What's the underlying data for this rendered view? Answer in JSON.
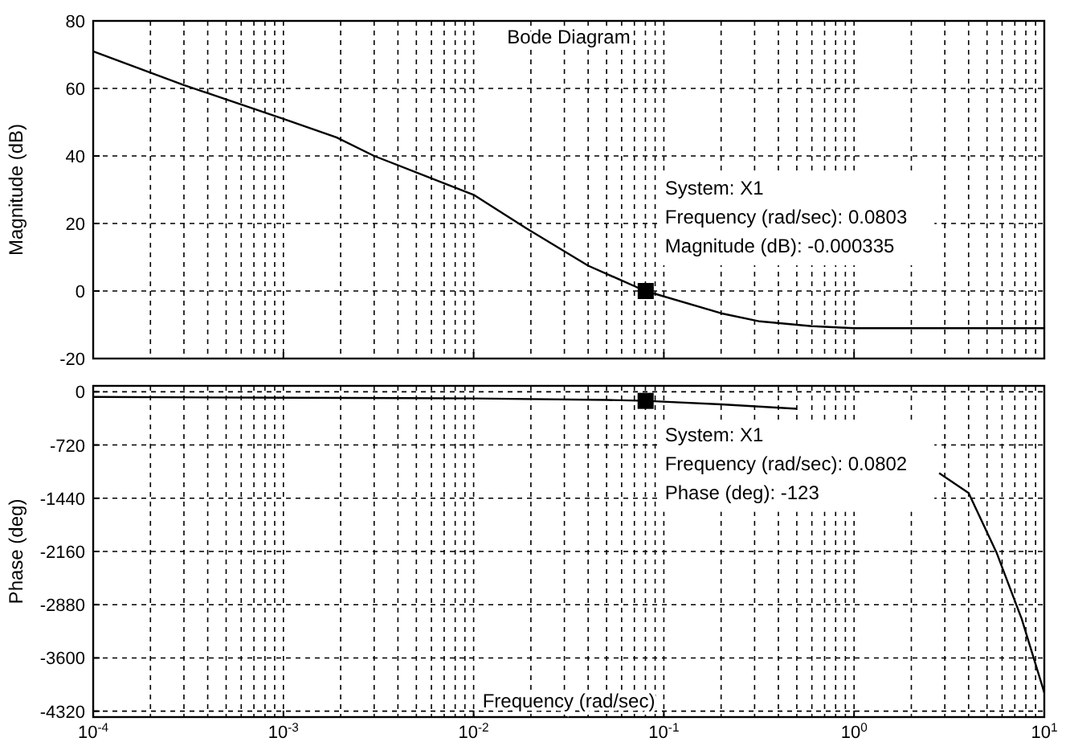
{
  "chart_data": [
    {
      "type": "line",
      "title": "Bode Diagram",
      "ylabel": "Magnitude (dB)",
      "x": [
        0.0001,
        0.0003,
        0.001,
        0.0019,
        0.003,
        0.01,
        0.019,
        0.04,
        0.08,
        0.2,
        0.32,
        0.6,
        1,
        10
      ],
      "series": [
        {
          "color": "#000000",
          "values": [
            71,
            61,
            51,
            45.5,
            40,
            28.5,
            18.5,
            7.5,
            0,
            -6.6,
            -9,
            -10.4,
            -11,
            -11
          ]
        },
        {
          "type": "scatter",
          "marker": "square",
          "color": "#000000",
          "x": [
            0.0803
          ],
          "values": [
            -0.000335
          ]
        }
      ],
      "log": "x",
      "xlim": [
        0.0001,
        10
      ],
      "ylim": [
        -20,
        80
      ],
      "yticks": [
        -20,
        0,
        20,
        40,
        60,
        80
      ],
      "xticks": [
        {
          "value": 0.0001,
          "label": null
        },
        {
          "value": 0.001,
          "label": null
        },
        {
          "value": 0.01,
          "label": null
        },
        {
          "value": 0.1,
          "label": null
        },
        {
          "value": 1,
          "label": null
        },
        {
          "value": 10,
          "label": null
        }
      ],
      "grid": true,
      "line_style": "solid",
      "tick_labels": "y",
      "annotations": [
        {
          "text": "System: X1\nFrequency (rad/sec): 0.0803\nMagnitude (dB): -0.000335",
          "x": 0.0803,
          "y": -0.000335
        }
      ]
    },
    {
      "type": "line",
      "ylabel": "Phase (deg)",
      "xlabel": "Frequency  (rad/sec)",
      "x": [
        0.0001,
        0.001,
        0.01,
        0.05,
        0.08,
        0.2,
        0.5,
        0.6,
        1,
        2,
        2.8,
        4,
        5.6,
        7.6,
        10
      ],
      "series": [
        {
          "color": "#000000",
          "values": [
            -70,
            -80,
            -90,
            -110,
            -123,
            -170,
            -230,
            null,
            null,
            null,
            -1100,
            -1370,
            -2170,
            -3070,
            -4070
          ]
        },
        {
          "type": "scatter",
          "marker": "square",
          "color": "#000000",
          "x": [
            0.0802
          ],
          "values": [
            -123
          ]
        }
      ],
      "log": "x",
      "xlim": [
        0.0001,
        10
      ],
      "ylim": [
        -4400,
        80
      ],
      "yticks": [
        -4320,
        -3600,
        -2880,
        -2160,
        -1440,
        -720,
        0
      ],
      "xticks": [
        {
          "value": 0.0001,
          "label": "10$^{-4}$"
        },
        {
          "value": 0.001,
          "label": "10$^{-3}$"
        },
        {
          "value": 0.01,
          "label": "10$^{-2}$"
        },
        {
          "value": 0.1,
          "label": "10$^{-1}$"
        },
        {
          "value": 1,
          "label": "10$^{0}$"
        },
        {
          "value": 10,
          "label": "10$^{1}$"
        }
      ],
      "grid": true,
      "line_style": "solid",
      "annotations": [
        {
          "text": "System: X1\nFrequency (rad/sec): 0.0802\nPhase (deg): -123",
          "x": 0.0802,
          "y": -123
        }
      ]
    }
  ]
}
